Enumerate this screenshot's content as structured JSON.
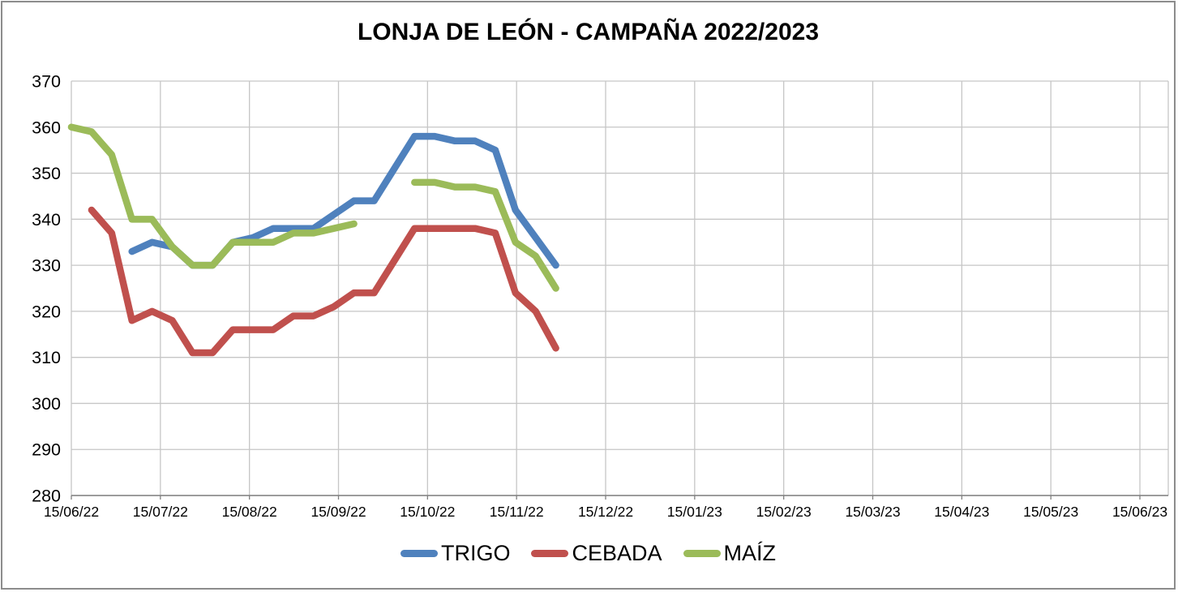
{
  "title": "LONJA DE LEÓN - CAMPAÑA 2022/2023",
  "chart_data": {
    "type": "line",
    "title": "LONJA DE LEÓN - CAMPAÑA 2022/2023",
    "x_categories_weekly": [
      "15/06/22",
      "22/06/22",
      "29/06/22",
      "06/07/22",
      "13/07/22",
      "20/07/22",
      "27/07/22",
      "03/08/22",
      "10/08/22",
      "17/08/22",
      "24/08/22",
      "31/08/22",
      "07/09/22",
      "14/09/22",
      "21/09/22",
      "28/09/22",
      "05/10/22",
      "12/10/22",
      "19/10/22",
      "26/10/22",
      "02/11/22",
      "09/11/22",
      "16/11/22",
      "23/11/22",
      "30/11/22"
    ],
    "series": [
      {
        "name": "TRIGO",
        "color": "#4F81BD",
        "values": [
          null,
          null,
          null,
          333,
          335,
          334,
          330,
          330,
          335,
          336,
          338,
          338,
          338,
          341,
          344,
          344,
          351,
          358,
          358,
          357,
          357,
          355,
          342,
          336,
          330
        ]
      },
      {
        "name": "CEBADA",
        "color": "#C0504D",
        "values": [
          null,
          342,
          337,
          318,
          320,
          318,
          311,
          311,
          316,
          316,
          316,
          319,
          319,
          321,
          324,
          324,
          331,
          338,
          338,
          338,
          338,
          337,
          324,
          320,
          312
        ]
      },
      {
        "name": "MAÍZ",
        "color": "#9BBB59",
        "values": [
          360,
          359,
          354,
          340,
          340,
          334,
          330,
          330,
          335,
          335,
          335,
          337,
          337,
          338,
          339,
          null,
          null,
          348,
          348,
          347,
          347,
          346,
          335,
          332,
          325
        ]
      }
    ],
    "axis": {
      "x_tick_labels": [
        "15/06/22",
        "15/07/22",
        "15/08/22",
        "15/09/22",
        "15/10/22",
        "15/11/22",
        "15/12/22",
        "15/01/23",
        "15/02/23",
        "15/03/23",
        "15/04/23",
        "15/05/23",
        "15/06/23"
      ],
      "y_tick_labels": [
        "370",
        "360",
        "350",
        "340",
        "330",
        "320",
        "310",
        "300",
        "290",
        "280"
      ],
      "ylim": [
        280,
        370
      ],
      "y_step": 10,
      "grid": true,
      "legend_position": "bottom"
    },
    "style": {
      "gridline_color": "#c6c6c6",
      "axis_line_color": "#808080",
      "text_color": "#000000",
      "line_width": 8.5
    }
  },
  "legend": {
    "items": [
      {
        "label": "TRIGO",
        "color": "#4F81BD"
      },
      {
        "label": "CEBADA",
        "color": "#C0504D"
      },
      {
        "label": "MAÍZ",
        "color": "#9BBB59"
      }
    ]
  }
}
